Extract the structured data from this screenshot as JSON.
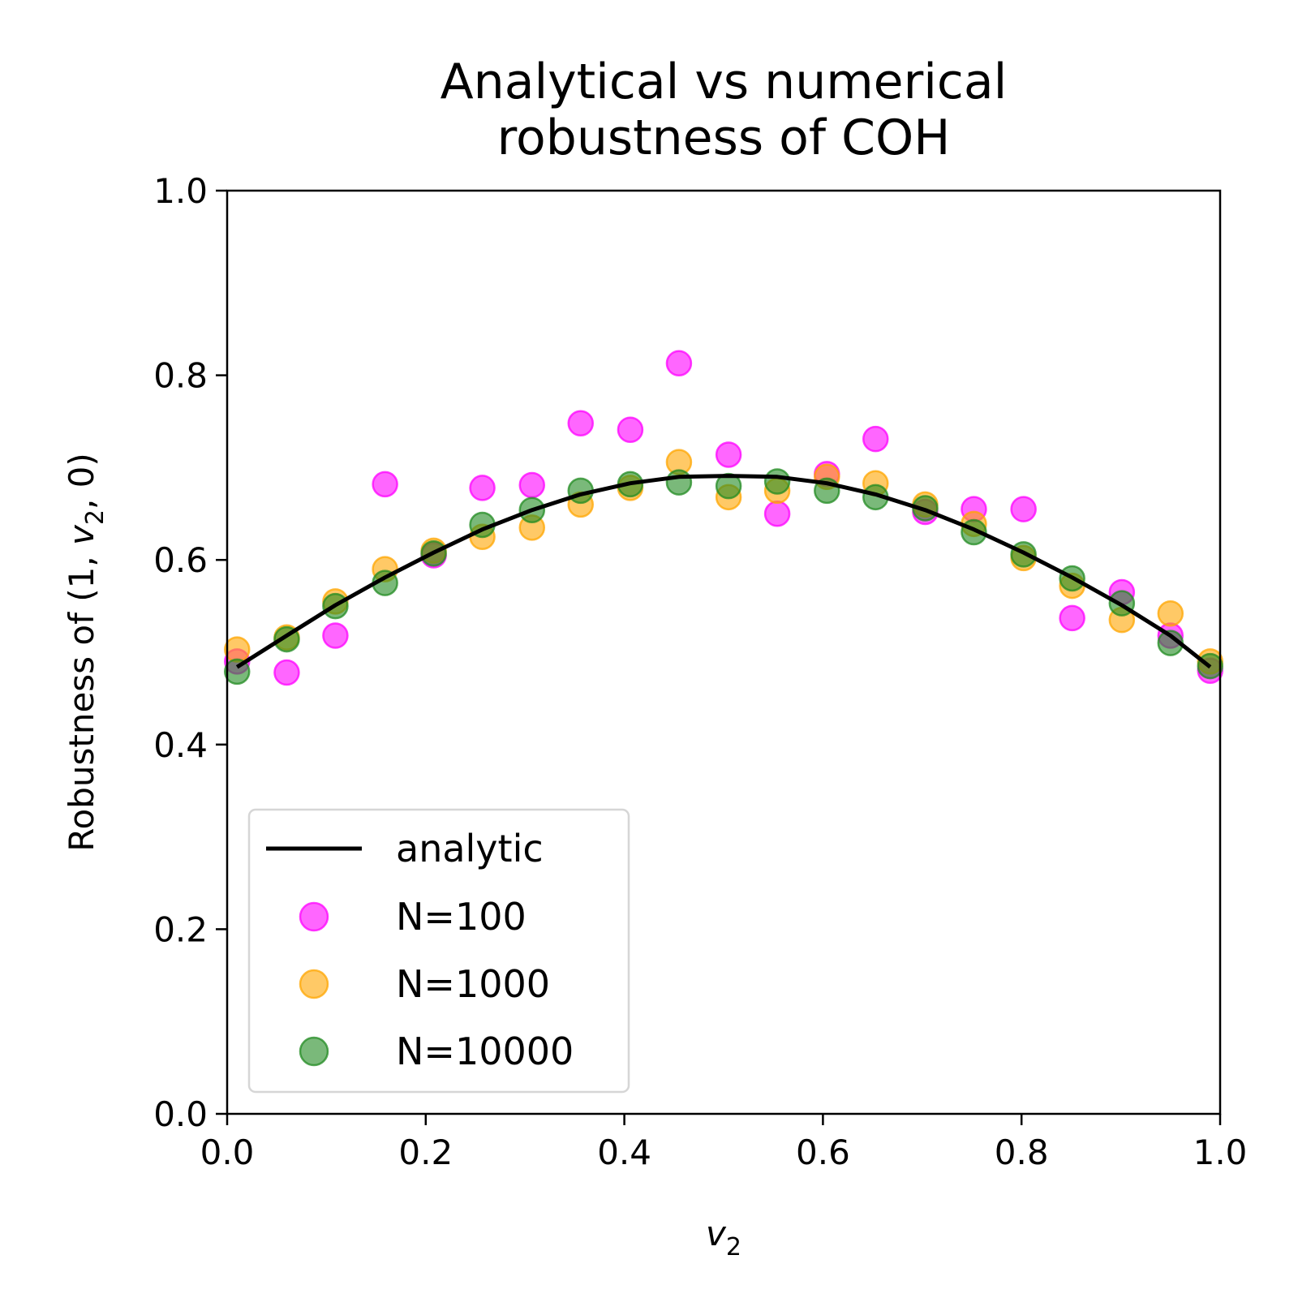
{
  "chart_data": {
    "type": "scatter",
    "title_lines": [
      "Analytical vs numerical",
      "robustness of COH"
    ],
    "xlabel": {
      "main": "v",
      "sub": "2"
    },
    "ylabel": {
      "prefix": "Robustness of (1, ",
      "var": "v",
      "sub": "2",
      "suffix": ", 0)"
    },
    "xlim": [
      0,
      1
    ],
    "ylim": [
      0,
      1
    ],
    "xticks": [
      0.0,
      0.2,
      0.4,
      0.6,
      0.8,
      1.0
    ],
    "yticks": [
      0.0,
      0.2,
      0.4,
      0.6,
      0.8,
      1.0
    ],
    "xtick_labels": [
      "0.0",
      "0.2",
      "0.4",
      "0.6",
      "0.8",
      "1.0"
    ],
    "ytick_labels": [
      "0.0",
      "0.2",
      "0.4",
      "0.6",
      "0.8",
      "1.0"
    ],
    "grid": false,
    "legend_position": "lower-left",
    "x": [
      0.01,
      0.06,
      0.109,
      0.159,
      0.208,
      0.257,
      0.307,
      0.356,
      0.406,
      0.455,
      0.505,
      0.554,
      0.604,
      0.653,
      0.703,
      0.752,
      0.802,
      0.851,
      0.901,
      0.95,
      0.99
    ],
    "line": {
      "name": "analytic",
      "color": "#000000",
      "values": [
        0.484,
        0.518,
        0.551,
        0.581,
        0.608,
        0.633,
        0.654,
        0.671,
        0.683,
        0.69,
        0.691,
        0.69,
        0.683,
        0.671,
        0.654,
        0.633,
        0.608,
        0.581,
        0.551,
        0.518,
        0.484
      ]
    },
    "series": [
      {
        "name": "N=100",
        "color": "#ff00ff",
        "values": [
          0.49,
          0.478,
          0.518,
          0.682,
          0.605,
          0.678,
          0.681,
          0.748,
          0.741,
          0.813,
          0.714,
          0.65,
          0.693,
          0.731,
          0.652,
          0.655,
          0.655,
          0.537,
          0.565,
          0.518,
          0.48
        ]
      },
      {
        "name": "N=1000",
        "color": "#ffa500",
        "values": [
          0.503,
          0.516,
          0.555,
          0.59,
          0.61,
          0.625,
          0.635,
          0.66,
          0.678,
          0.706,
          0.668,
          0.675,
          0.69,
          0.683,
          0.66,
          0.639,
          0.602,
          0.572,
          0.535,
          0.542,
          0.49
        ]
      },
      {
        "name": "N=10000",
        "color": "#228b22",
        "values": [
          0.479,
          0.514,
          0.55,
          0.575,
          0.607,
          0.638,
          0.654,
          0.675,
          0.682,
          0.684,
          0.68,
          0.685,
          0.675,
          0.668,
          0.656,
          0.63,
          0.606,
          0.58,
          0.553,
          0.51,
          0.485
        ]
      }
    ]
  }
}
